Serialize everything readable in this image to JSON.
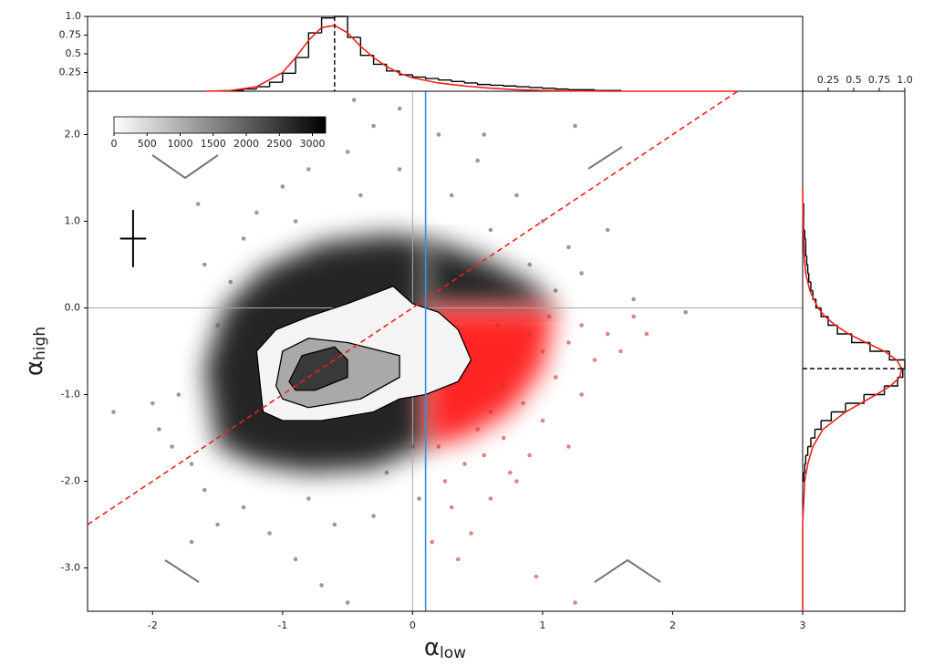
{
  "chart_data": [
    {
      "type": "histogram",
      "orientation": "vertical",
      "color": "#000000",
      "bins": [
        -1.4,
        -1.3,
        -1.2,
        -1.1,
        -1.0,
        -0.9,
        -0.8,
        -0.7,
        -0.6,
        -0.5,
        -0.4,
        -0.3,
        -0.2,
        -0.1,
        0.0,
        0.1,
        0.2,
        0.3,
        0.4,
        0.5,
        0.6,
        0.7,
        0.8,
        0.9,
        1.0,
        1.1,
        1.2,
        1.3,
        1.4,
        1.5,
        1.6
      ],
      "counts": [
        0.01,
        0.03,
        0.06,
        0.12,
        0.24,
        0.45,
        0.78,
        0.98,
        1.0,
        0.72,
        0.48,
        0.36,
        0.27,
        0.22,
        0.19,
        0.17,
        0.15,
        0.13,
        0.11,
        0.09,
        0.08,
        0.07,
        0.06,
        0.05,
        0.04,
        0.03,
        0.02,
        0.02,
        0.01,
        0.01
      ],
      "xlim": [
        -2.5,
        3
      ],
      "ylim": [
        0,
        1
      ],
      "yticks": [
        0.25,
        0.5,
        0.75,
        {
          "value": 1,
          "label": "1.0"
        }
      ],
      "fit": {
        "color": "#e8231c",
        "x": [
          -1.6,
          -1.4,
          -1.2,
          -1.0,
          -0.9,
          -0.8,
          -0.7,
          -0.6,
          -0.5,
          -0.4,
          -0.3,
          -0.2,
          -0.1,
          0.0,
          0.2,
          0.4,
          0.6,
          0.8,
          1.0,
          1.5,
          2.0,
          2.5
        ],
        "y": [
          0,
          0.01,
          0.06,
          0.25,
          0.45,
          0.68,
          0.85,
          0.88,
          0.78,
          0.6,
          0.45,
          0.33,
          0.24,
          0.18,
          0.11,
          0.07,
          0.04,
          0.02,
          0.01,
          0,
          0,
          0
        ]
      },
      "marker_x": -0.6
    },
    {
      "type": "scatter",
      "xlabel": {
        "symbol": "α",
        "sub": "low"
      },
      "ylabel": {
        "symbol": "α",
        "sub": "high"
      },
      "xlim": [
        -2.5,
        3
      ],
      "ylim": [
        -3.5,
        2.5
      ],
      "xticks": [
        -2,
        -1,
        0,
        1,
        2,
        3
      ],
      "yticks": [
        {
          "value": 2,
          "label": "2.0"
        },
        {
          "value": 1,
          "label": "1.0"
        },
        {
          "value": 0,
          "label": "0.0"
        },
        {
          "value": -1,
          "label": "-1.0"
        },
        {
          "value": -2,
          "label": "-2.0"
        },
        {
          "value": -3,
          "label": "-3.0"
        }
      ],
      "dense_regions": [
        {
          "color": "#000000",
          "x": [
            -1.5,
            -1.6,
            -1.45,
            -1.15,
            -0.7,
            -0.2,
            0.1,
            0.1,
            -0.3,
            -0.8,
            -1.2
          ],
          "y": [
            -1.6,
            -0.7,
            0.0,
            0.45,
            0.75,
            0.85,
            0.8,
            -1.6,
            -1.85,
            -1.9,
            -1.8
          ]
        },
        {
          "color": "#000000",
          "x": [
            0.1,
            0.1,
            0.5,
            0.9,
            1.1
          ],
          "y": [
            0,
            0.8,
            0.6,
            0.3,
            0
          ]
        },
        {
          "color": "#ff0000",
          "x": [
            0.1,
            1.1,
            1.0,
            0.75,
            0.4,
            0.1
          ],
          "y": [
            0,
            0,
            -0.7,
            -1.2,
            -1.5,
            -1.6
          ]
        }
      ],
      "series": [
        {
          "color": "#555555",
          "x": [
            -2.0,
            -1.95,
            -1.85,
            -1.7,
            -1.6,
            -1.5,
            -1.4,
            -1.6,
            -1.3,
            -1.2,
            -1.0,
            -0.8,
            -0.5,
            -0.3,
            -0.1,
            0.2,
            0.5,
            0.8,
            1.0,
            1.2,
            1.3,
            1.1,
            0.9,
            0.6,
            0.3,
            -0.1,
            -0.4,
            -0.9,
            -1.3,
            -1.1,
            -0.9,
            -0.7,
            -0.5,
            -0.6,
            -0.3,
            -0.2,
            -0.8,
            -1.5,
            -1.7,
            -1.8,
            0.0,
            0.05,
            1.7,
            2.1,
            1.5,
            1.25,
            -2.3,
            -1.65,
            -0.45,
            0.55
          ],
          "y": [
            -1.1,
            -1.4,
            -1.6,
            -1.8,
            -2.1,
            -0.2,
            0.3,
            0.5,
            0.8,
            1.1,
            1.4,
            1.6,
            1.8,
            2.1,
            2.3,
            2.0,
            1.7,
            1.3,
            1.0,
            0.7,
            0.4,
            0.2,
            0.5,
            0.9,
            1.3,
            1.6,
            1.3,
            1.0,
            -2.3,
            -2.6,
            -2.9,
            -3.2,
            -3.4,
            -2.5,
            -2.4,
            -1.9,
            -2.2,
            -2.5,
            -2.7,
            -1.0,
            -1.6,
            -2.2,
            0.1,
            -0.05,
            0.9,
            2.1,
            -1.2,
            1.2,
            2.4,
            2.0
          ]
        },
        {
          "color": "#c0392b",
          "x": [
            0.2,
            0.25,
            0.3,
            0.4,
            0.5,
            0.6,
            0.7,
            0.8,
            0.9,
            1.0,
            1.1,
            1.2,
            1.3,
            1.4,
            1.5,
            1.6,
            1.7,
            1.8,
            0.55,
            0.7,
            0.85,
            1.0,
            0.45,
            0.6,
            0.8,
            0.35,
            1.2,
            0.9,
            1.3,
            0.15,
            0.95,
            1.25,
            0.75,
            1.05,
            0.3,
            0.65
          ],
          "y": [
            -1.6,
            -2.0,
            -2.3,
            -1.8,
            -1.4,
            -1.2,
            -0.9,
            -0.6,
            -0.3,
            -0.5,
            -0.8,
            -0.4,
            -0.2,
            -0.6,
            -0.3,
            -0.5,
            -0.1,
            -0.3,
            -1.7,
            -1.5,
            -1.1,
            -1.3,
            -2.6,
            -2.2,
            -2.0,
            -2.9,
            -1.6,
            -1.7,
            -1.0,
            -2.7,
            -3.1,
            -3.4,
            -1.9,
            -0.1,
            -0.9,
            -0.2
          ]
        }
      ],
      "contours": [
        {
          "color": "#000000",
          "fill": "#f4f4f4",
          "x": [
            -1.15,
            -1.2,
            -1.05,
            -0.8,
            -0.5,
            -0.15,
            0.0,
            0.1,
            0.2,
            0.35,
            0.45,
            0.35,
            0.1,
            -0.1,
            -0.3,
            -0.7,
            -1.0
          ],
          "y": [
            -1.2,
            -0.5,
            -0.25,
            -0.1,
            0.05,
            0.25,
            0.05,
            0.0,
            -0.05,
            -0.25,
            -0.6,
            -0.85,
            -1.0,
            -1.05,
            -1.2,
            -1.3,
            -1.3
          ]
        },
        {
          "color": "#000000",
          "fill": "#a9a9a9",
          "x": [
            -1.05,
            -1.0,
            -0.8,
            -0.5,
            -0.1,
            -0.1,
            -0.4,
            -0.8,
            -1.0
          ],
          "y": [
            -0.9,
            -0.5,
            -0.35,
            -0.4,
            -0.55,
            -0.8,
            -1.05,
            -1.15,
            -1.05
          ]
        },
        {
          "color": "#000000",
          "fill": "#3a3a3a",
          "x": [
            -0.95,
            -0.85,
            -0.6,
            -0.5,
            -0.5,
            -0.75,
            -0.9
          ],
          "y": [
            -0.85,
            -0.55,
            -0.45,
            -0.6,
            -0.8,
            -0.95,
            -0.95
          ]
        }
      ],
      "reference_line": {
        "color": "#e8231c",
        "x": [
          -2.5,
          2.5
        ],
        "y": [
          -2.5,
          2.5
        ]
      },
      "cut_x": 0.1,
      "cut_color": "#3b8fe0",
      "error_bar": {
        "x": -2.15,
        "y": 0.8,
        "xerr": 0.1,
        "yerr": 0.33
      },
      "colorbar": {
        "lim": [
          0,
          3200
        ],
        "ticks": [
          0,
          500,
          1000,
          1500,
          2000,
          2500,
          3000
        ]
      }
    },
    {
      "type": "histogram",
      "orientation": "horizontal",
      "color": "#000000",
      "bins": [
        -2.0,
        -1.9,
        -1.8,
        -1.7,
        -1.6,
        -1.5,
        -1.4,
        -1.3,
        -1.2,
        -1.1,
        -1.0,
        -0.9,
        -0.8,
        -0.7,
        -0.6,
        -0.5,
        -0.4,
        -0.3,
        -0.2,
        -0.1,
        0.0,
        0.1,
        0.2,
        0.3,
        0.4,
        0.5,
        0.6,
        0.7,
        0.8,
        0.9,
        1.0,
        1.1,
        1.2
      ],
      "counts": [
        0.01,
        0.02,
        0.03,
        0.05,
        0.08,
        0.12,
        0.18,
        0.28,
        0.42,
        0.6,
        0.8,
        0.93,
        0.98,
        1.0,
        0.85,
        0.66,
        0.48,
        0.34,
        0.25,
        0.18,
        0.13,
        0.1,
        0.08,
        0.06,
        0.05,
        0.04,
        0.03,
        0.03,
        0.02,
        0.01,
        0.01,
        0.01
      ],
      "xlim": [
        0,
        1
      ],
      "ylim": [
        -3.5,
        2.5
      ],
      "xticks": [
        0.25,
        0.5,
        0.75,
        {
          "value": 1,
          "label": "1.0"
        }
      ],
      "fit": {
        "color": "#e8231c",
        "x": [
          0,
          0,
          0.02,
          0.05,
          0.1,
          0.2,
          0.42,
          0.72,
          0.86,
          0.95,
          0.97,
          0.92,
          0.8,
          0.62,
          0.45,
          0.32,
          0.22,
          0.15,
          0.07,
          0.03,
          0.015,
          0.01,
          0.005,
          0.002,
          0
        ],
        "y": [
          -3.5,
          -2.5,
          -2.0,
          -1.8,
          -1.6,
          -1.4,
          -1.2,
          -1.0,
          -0.9,
          -0.8,
          -0.7,
          -0.6,
          -0.5,
          -0.4,
          -0.3,
          -0.2,
          -0.1,
          0,
          0.2,
          0.4,
          0.6,
          0.8,
          1.0,
          1.2,
          1.4
        ]
      },
      "marker_y": -0.7
    }
  ]
}
